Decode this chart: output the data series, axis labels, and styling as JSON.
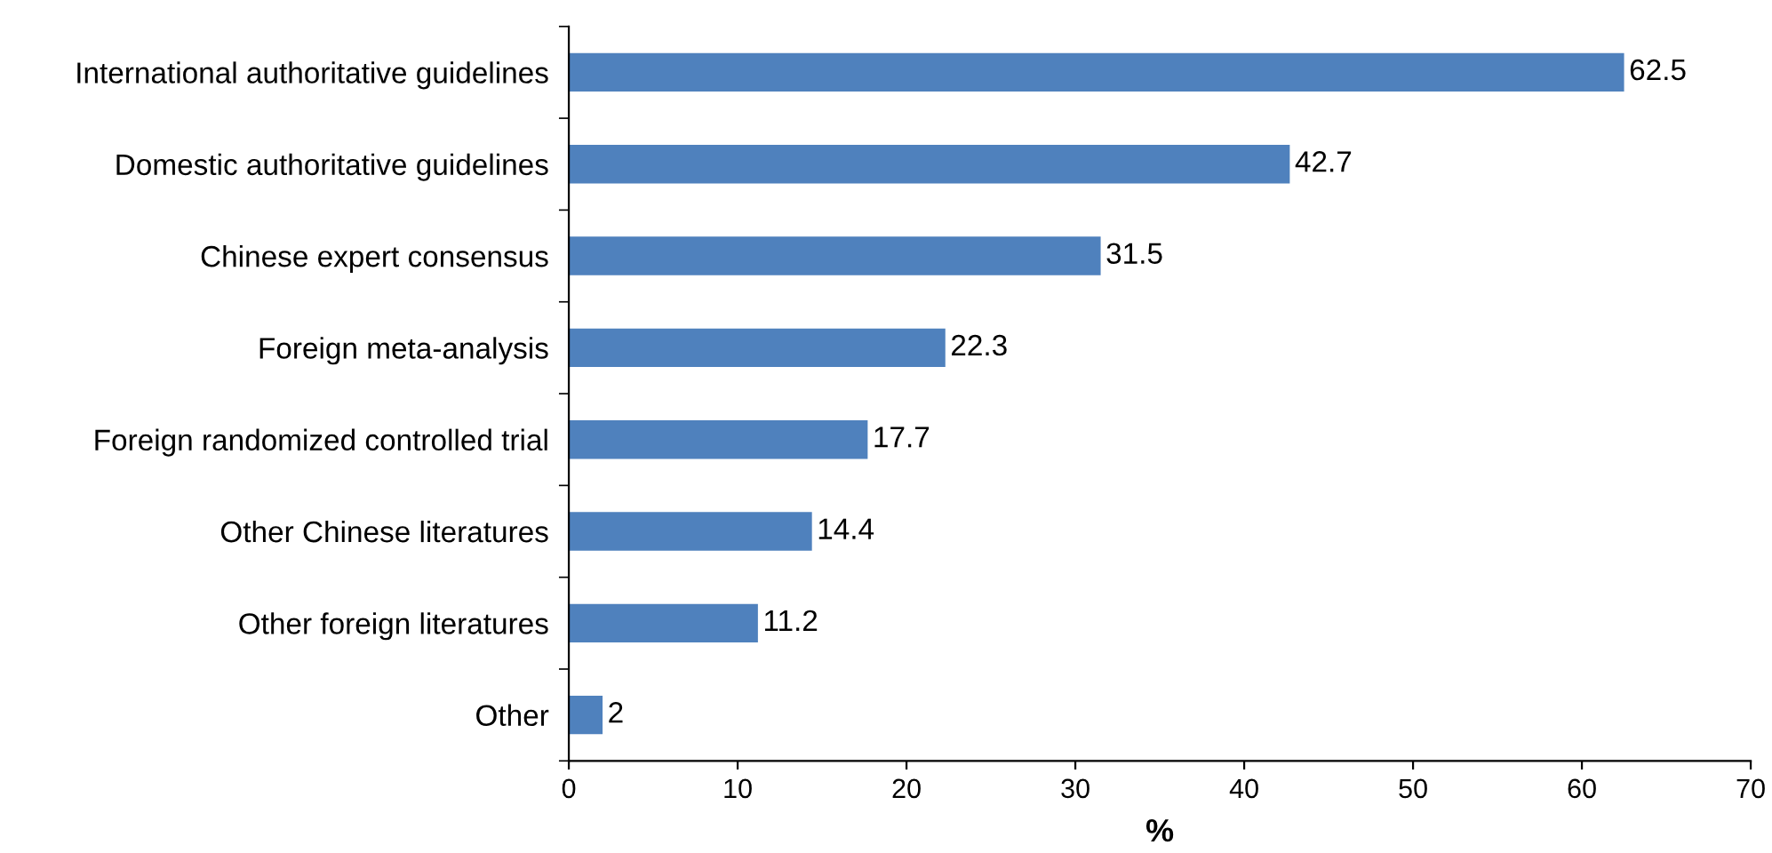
{
  "chart_data": {
    "type": "bar",
    "orientation": "horizontal",
    "xlabel": "%",
    "categories": [
      "International authoritative guidelines",
      "Domestic authoritative guidelines",
      "Chinese expert consensus",
      "Foreign meta-analysis",
      "Foreign randomized controlled trial",
      "Other Chinese literatures",
      "Other foreign literatures",
      "Other"
    ],
    "values": [
      62.5,
      42.7,
      31.5,
      22.3,
      17.7,
      14.4,
      11.2,
      2
    ],
    "color": "#4f81bd",
    "xlim": [
      0,
      70
    ],
    "xticks": [
      0,
      10,
      20,
      30,
      40,
      50,
      60,
      70
    ],
    "data_labels": true,
    "grid": false,
    "legend": false
  }
}
